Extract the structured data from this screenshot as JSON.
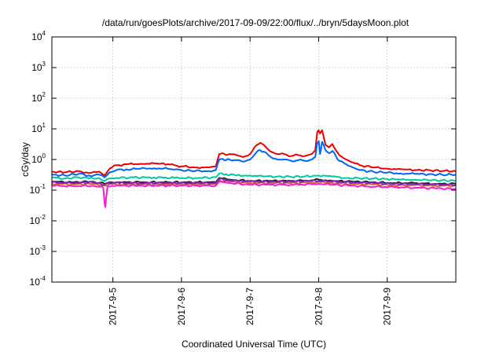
{
  "chart_data": {
    "type": "line",
    "title": "/data/run/goesPlots/archive/2017-09-09/22:00/flux/../bryn/5daysMoon.plot",
    "xlabel": "Coordinated Universal Time (UTC)",
    "ylabel": "cGy/day",
    "yscale": "log",
    "ylim": [
      0.0001,
      10000
    ],
    "xlim": [
      -0.89,
      5.0
    ],
    "yticks": [
      {
        "value": 0.0001,
        "base": "10",
        "exp": "-4"
      },
      {
        "value": 0.001,
        "base": "10",
        "exp": "-3"
      },
      {
        "value": 0.01,
        "base": "10",
        "exp": "-2"
      },
      {
        "value": 0.1,
        "base": "10",
        "exp": "-1"
      },
      {
        "value": 1,
        "base": "10",
        "exp": "0"
      },
      {
        "value": 10,
        "base": "10",
        "exp": "1"
      },
      {
        "value": 100,
        "base": "10",
        "exp": "2"
      },
      {
        "value": 1000,
        "base": "10",
        "exp": "3"
      },
      {
        "value": 10000,
        "base": "10",
        "exp": "4"
      }
    ],
    "xticks": [
      {
        "value": 0,
        "label": "2017-9-5"
      },
      {
        "value": 1,
        "label": "2017-9-6"
      },
      {
        "value": 2,
        "label": "2017-9-7"
      },
      {
        "value": 3,
        "label": "2017-9-8"
      },
      {
        "value": 4,
        "label": "2017-9-9"
      }
    ],
    "grid": true,
    "series": [
      {
        "color": "#ee0000",
        "x": [
          -0.89,
          -0.7,
          -0.5,
          -0.35,
          -0.2,
          -0.12,
          -0.05,
          0.05,
          0.2,
          0.4,
          0.6,
          0.8,
          0.9,
          1.0,
          1.2,
          1.4,
          1.5,
          1.55,
          1.6,
          1.65,
          1.7,
          1.8,
          1.9,
          2.0,
          2.1,
          2.15,
          2.2,
          2.3,
          2.4,
          2.5,
          2.6,
          2.7,
          2.8,
          2.9,
          2.95,
          2.98,
          3.0,
          3.02,
          3.05,
          3.1,
          3.15,
          3.2,
          3.25,
          3.3,
          3.4,
          3.5,
          3.6,
          3.8,
          4.0,
          4.2,
          4.4,
          4.6,
          4.8,
          5.0
        ],
        "y": [
          0.4,
          0.38,
          0.42,
          0.36,
          0.4,
          0.3,
          0.5,
          0.65,
          0.7,
          0.72,
          0.75,
          0.7,
          0.65,
          0.6,
          0.55,
          0.55,
          0.6,
          1.5,
          1.6,
          1.4,
          1.5,
          1.4,
          1.2,
          1.5,
          3.0,
          3.5,
          3.0,
          1.8,
          1.5,
          1.5,
          1.3,
          1.4,
          1.3,
          1.5,
          2.0,
          8.0,
          9.0,
          7.0,
          9.0,
          3.0,
          2.5,
          3.2,
          2.0,
          1.4,
          1.0,
          0.8,
          0.65,
          0.55,
          0.5,
          0.48,
          0.45,
          0.45,
          0.42,
          0.42
        ]
      },
      {
        "color": "#0064ff",
        "x": [
          -0.89,
          -0.7,
          -0.5,
          -0.35,
          -0.2,
          -0.12,
          -0.05,
          0.05,
          0.2,
          0.4,
          0.6,
          0.8,
          0.9,
          1.0,
          1.2,
          1.4,
          1.5,
          1.55,
          1.6,
          1.65,
          1.7,
          1.8,
          1.9,
          2.0,
          2.1,
          2.15,
          2.2,
          2.3,
          2.4,
          2.5,
          2.6,
          2.7,
          2.8,
          2.9,
          2.95,
          2.98,
          3.0,
          3.02,
          3.05,
          3.1,
          3.15,
          3.2,
          3.25,
          3.3,
          3.4,
          3.5,
          3.6,
          3.8,
          4.0,
          4.2,
          4.4,
          4.6,
          4.8,
          5.0
        ],
        "y": [
          0.32,
          0.3,
          0.34,
          0.3,
          0.32,
          0.26,
          0.38,
          0.45,
          0.48,
          0.5,
          0.52,
          0.5,
          0.47,
          0.45,
          0.42,
          0.42,
          0.45,
          1.0,
          1.05,
          0.95,
          1.0,
          0.95,
          0.85,
          1.0,
          1.8,
          2.0,
          1.8,
          1.2,
          1.0,
          1.0,
          0.9,
          0.95,
          0.9,
          1.0,
          1.2,
          3.5,
          4.0,
          1.5,
          3.8,
          2.0,
          1.6,
          1.9,
          1.3,
          0.9,
          0.7,
          0.55,
          0.45,
          0.4,
          0.37,
          0.35,
          0.34,
          0.33,
          0.32,
          0.32
        ]
      },
      {
        "color": "#00c8a0",
        "x": [
          -0.89,
          -0.7,
          -0.5,
          -0.35,
          -0.2,
          -0.12,
          -0.05,
          0.05,
          0.3,
          0.6,
          0.9,
          1.2,
          1.5,
          1.55,
          1.65,
          1.8,
          2.0,
          2.2,
          2.4,
          2.6,
          2.8,
          3.0,
          3.2,
          3.4,
          3.6,
          3.8,
          4.0,
          4.2,
          4.4,
          4.6,
          4.8,
          5.0
        ],
        "y": [
          0.26,
          0.24,
          0.26,
          0.24,
          0.25,
          0.2,
          0.24,
          0.25,
          0.26,
          0.26,
          0.25,
          0.25,
          0.26,
          0.35,
          0.33,
          0.3,
          0.3,
          0.28,
          0.28,
          0.27,
          0.28,
          0.3,
          0.28,
          0.25,
          0.24,
          0.24,
          0.23,
          0.22,
          0.22,
          0.21,
          0.21,
          0.2
        ]
      },
      {
        "color": "#222222",
        "x": [
          -0.89,
          -0.6,
          -0.3,
          -0.12,
          -0.05,
          0.1,
          0.4,
          0.8,
          1.2,
          1.5,
          1.55,
          1.7,
          2.0,
          2.3,
          2.6,
          2.9,
          3.0,
          3.2,
          3.5,
          3.8,
          4.1,
          4.4,
          4.7,
          5.0
        ],
        "y": [
          0.19,
          0.18,
          0.19,
          0.16,
          0.18,
          0.18,
          0.18,
          0.18,
          0.18,
          0.18,
          0.25,
          0.22,
          0.2,
          0.2,
          0.2,
          0.21,
          0.22,
          0.2,
          0.19,
          0.18,
          0.17,
          0.17,
          0.16,
          0.16
        ]
      },
      {
        "color": "#cc7020",
        "x": [
          -0.89,
          -0.6,
          -0.3,
          -0.12,
          -0.05,
          0.1,
          0.4,
          0.8,
          1.2,
          1.5,
          1.55,
          1.7,
          2.0,
          2.3,
          2.6,
          2.9,
          3.0,
          3.2,
          3.5,
          3.8,
          4.1,
          4.4,
          4.7,
          5.0
        ],
        "y": [
          0.16,
          0.155,
          0.16,
          0.14,
          0.155,
          0.155,
          0.155,
          0.155,
          0.155,
          0.155,
          0.21,
          0.19,
          0.17,
          0.17,
          0.17,
          0.18,
          0.185,
          0.17,
          0.16,
          0.155,
          0.145,
          0.145,
          0.14,
          0.14
        ]
      },
      {
        "color": "#8a20c8",
        "x": [
          -0.89,
          -0.6,
          -0.3,
          -0.12,
          -0.05,
          0.1,
          0.4,
          0.8,
          1.2,
          1.5,
          1.55,
          1.7,
          2.0,
          2.3,
          2.6,
          2.9,
          3.0,
          3.2,
          3.5,
          3.8,
          4.1,
          4.4,
          4.7,
          5.0
        ],
        "y": [
          0.18,
          0.17,
          0.18,
          0.15,
          0.17,
          0.17,
          0.17,
          0.17,
          0.17,
          0.17,
          0.23,
          0.21,
          0.19,
          0.19,
          0.19,
          0.2,
          0.2,
          0.19,
          0.18,
          0.17,
          0.16,
          0.16,
          0.15,
          0.15
        ]
      },
      {
        "color": "#f020d0",
        "x": [
          -0.89,
          -0.6,
          -0.3,
          -0.14,
          -0.12,
          -0.11,
          -0.1,
          -0.08,
          0.1,
          0.4,
          0.8,
          1.2,
          1.5,
          1.55,
          1.7,
          2.0,
          2.3,
          2.6,
          2.9,
          3.0,
          3.2,
          3.5,
          3.8,
          4.1,
          4.4,
          4.7,
          5.0
        ],
        "y": [
          0.14,
          0.135,
          0.14,
          0.12,
          0.035,
          0.028,
          0.05,
          0.13,
          0.14,
          0.14,
          0.14,
          0.14,
          0.14,
          0.19,
          0.17,
          0.15,
          0.15,
          0.15,
          0.155,
          0.16,
          0.15,
          0.14,
          0.13,
          0.125,
          0.12,
          0.115,
          0.11
        ]
      }
    ]
  }
}
